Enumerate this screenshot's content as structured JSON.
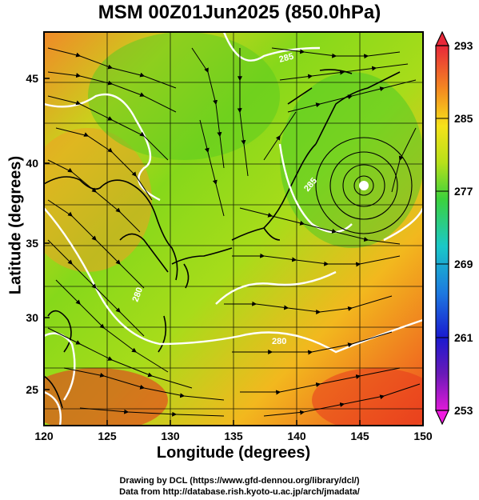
{
  "title": "MSM 00Z01Jun2025 (850.0hPa)",
  "axes": {
    "xlabel": "Longitude (degrees)",
    "ylabel": "Latitude  (degrees)",
    "xticks": [
      "120",
      "125",
      "130",
      "135",
      "140",
      "145",
      "150"
    ],
    "yticks": [
      "25",
      "30",
      "35",
      "40",
      "45"
    ],
    "xrange": [
      120,
      150
    ],
    "yrange": [
      22.5,
      47.8
    ]
  },
  "colorbar": {
    "labels": [
      "293",
      "285",
      "277",
      "269",
      "261",
      "253"
    ],
    "range": [
      253,
      293
    ]
  },
  "contour_labels": [
    "285",
    "280",
    "280",
    "285"
  ],
  "credits": {
    "line1": "Drawing by DCL (https://www.gfd-dennou.org/library/dcl/)",
    "line2": "Data from http://database.rish.kyoto-u.ac.jp/arch/jmadata/"
  }
}
